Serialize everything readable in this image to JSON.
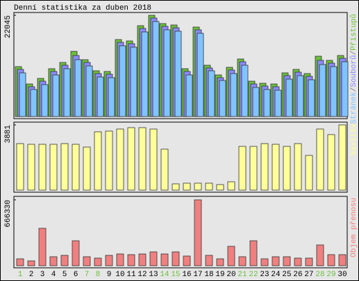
{
  "title": "Denní statistika za duben 2018",
  "chart_data": [
    {
      "type": "bar",
      "legend_separator": "/",
      "ylim": [
        0,
        22045
      ],
      "yticks": [
        22045
      ],
      "series": [
        {
          "name": "Přístupů",
          "color": "#6cbf3c",
          "values": [
            10872,
            7097,
            8305,
            10419,
            11778,
            14194,
            12382,
            9966,
            9815,
            16761,
            16459,
            19781,
            22045,
            20234,
            19932,
            10419,
            19479,
            11174,
            9060,
            10721,
            12533,
            7701,
            7248,
            7097,
            9513,
            10268,
            9362,
            13137,
            12231,
            13288
          ]
        },
        {
          "name": "Souborů",
          "color": "#8a8aff",
          "values": [
            10268,
            6493,
            7701,
            9815,
            11174,
            13288,
            11778,
            9362,
            9211,
            16157,
            15855,
            19177,
            21441,
            19630,
            19328,
            9815,
            18875,
            10570,
            8456,
            10117,
            11929,
            7097,
            6644,
            6493,
            8909,
            9664,
            8758,
            12231,
            11627,
            12684
          ]
        },
        {
          "name": "Stránek",
          "color": "#80c4ff",
          "values": [
            9513,
            5889,
            6946,
            9060,
            10419,
            12382,
            11023,
            8607,
            8456,
            15402,
            15100,
            18422,
            20687,
            18875,
            18573,
            9060,
            18120,
            9966,
            7852,
            9362,
            11174,
            6342,
            5889,
            5738,
            8154,
            8909,
            8003,
            11325,
            10872,
            11929
          ]
        }
      ]
    },
    {
      "type": "bar",
      "ylim": [
        0,
        3881
      ],
      "yticks": [
        3881
      ],
      "series": [
        {
          "name": "Návštěv",
          "color": "#ffff99",
          "values": [
            2767,
            2726,
            2726,
            2726,
            2767,
            2726,
            2561,
            3469,
            3511,
            3634,
            3717,
            3717,
            3634,
            2437,
            372,
            413,
            413,
            413,
            330,
            496,
            2602,
            2602,
            2767,
            2726,
            2602,
            2767,
            2065,
            3634,
            3304,
            3881
          ]
        }
      ]
    },
    {
      "type": "bar",
      "ylim": [
        0,
        666330
      ],
      "yticks": [
        666330
      ],
      "categories": [
        1,
        2,
        3,
        4,
        5,
        6,
        7,
        8,
        9,
        10,
        11,
        12,
        13,
        14,
        15,
        16,
        17,
        18,
        19,
        20,
        21,
        22,
        23,
        24,
        25,
        26,
        27,
        28,
        29,
        30
      ],
      "category_colors": [
        "#6cbf3c",
        "#000000",
        "#000000",
        "#000000",
        "#000000",
        "#000000",
        "#6cbf3c",
        "#6cbf3c",
        "#000000",
        "#000000",
        "#000000",
        "#000000",
        "#000000",
        "#6cbf3c",
        "#6cbf3c",
        "#000000",
        "#000000",
        "#000000",
        "#000000",
        "#000000",
        "#6cbf3c",
        "#6cbf3c",
        "#000000",
        "#000000",
        "#000000",
        "#000000",
        "#000000",
        "#6cbf3c",
        "#6cbf3c",
        "#000000"
      ],
      "series": [
        {
          "name": "Objem přenosu",
          "color": "#f08080",
          "values": [
            70140,
            49098,
            378756,
            91182,
            105210,
            252504,
            91182,
            77154,
            105210,
            119238,
            112224,
            119238,
            140280,
            119238,
            140280,
            98196,
            666330,
            105210,
            70140,
            196392,
            91182,
            252504,
            70140,
            91182,
            91182,
            77154,
            77154,
            210420,
            112224,
            112224
          ]
        }
      ]
    }
  ]
}
